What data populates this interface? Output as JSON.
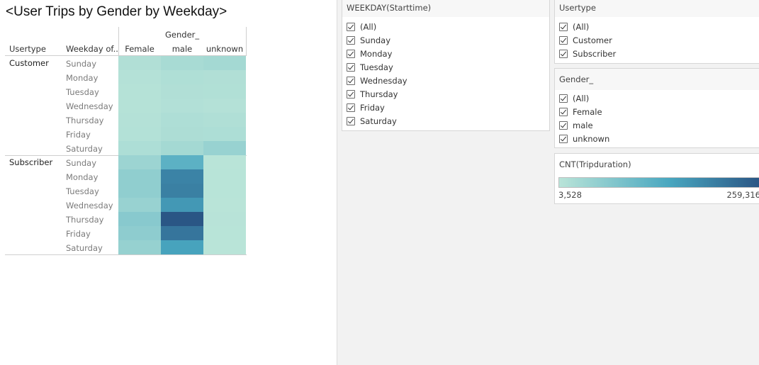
{
  "chart_data": {
    "type": "heatmap",
    "title": "<User Trips by Gender by Weekday>",
    "column_group_header": "Gender_",
    "row_headers": [
      "Usertype",
      "Weekday of.."
    ],
    "columns": [
      "Female",
      "male",
      "unknown"
    ],
    "measure": "CNT(Tripduration)",
    "color_range": [
      3528,
      259316
    ],
    "colors": {
      "low": "#b9e4d8",
      "mid": "#49a7c0",
      "high": "#2a5685"
    },
    "groups": [
      {
        "name": "Customer",
        "rows": [
          {
            "day": "Sunday",
            "values": [
              14000,
              25000,
              30000
            ]
          },
          {
            "day": "Monday",
            "values": [
              10000,
              16000,
              14000
            ]
          },
          {
            "day": "Tuesday",
            "values": [
              9000,
              14000,
              13000
            ]
          },
          {
            "day": "Wednesday",
            "values": [
              8000,
              12000,
              10000
            ]
          },
          {
            "day": "Thursday",
            "values": [
              10000,
              17000,
              15000
            ]
          },
          {
            "day": "Friday",
            "values": [
              11000,
              19000,
              18000
            ]
          },
          {
            "day": "Saturday",
            "values": [
              18000,
              30000,
              45000
            ]
          }
        ]
      },
      {
        "name": "Subscriber",
        "rows": [
          {
            "day": "Sunday",
            "values": [
              40000,
              120000,
              4000
            ]
          },
          {
            "day": "Monday",
            "values": [
              55000,
              195000,
              4500
            ]
          },
          {
            "day": "Tuesday",
            "values": [
              55000,
              200000,
              4500
            ]
          },
          {
            "day": "Wednesday",
            "values": [
              45000,
              165000,
              4000
            ]
          },
          {
            "day": "Thursday",
            "values": [
              65000,
              259316,
              5000
            ]
          },
          {
            "day": "Friday",
            "values": [
              58000,
              215000,
              4500
            ]
          },
          {
            "day": "Saturday",
            "values": [
              48000,
              150000,
              3528
            ]
          }
        ]
      }
    ]
  },
  "filters": {
    "weekday": {
      "title": "WEEKDAY(Starttime)",
      "options": [
        "(All)",
        "Sunday",
        "Monday",
        "Tuesday",
        "Wednesday",
        "Thursday",
        "Friday",
        "Saturday"
      ],
      "checked": [
        true,
        true,
        true,
        true,
        true,
        true,
        true,
        true
      ]
    },
    "usertype": {
      "title": "Usertype",
      "options": [
        "(All)",
        "Customer",
        "Subscriber"
      ],
      "checked": [
        true,
        true,
        true
      ]
    },
    "gender": {
      "title": "Gender_",
      "options": [
        "(All)",
        "Female",
        "male",
        "unknown"
      ],
      "checked": [
        true,
        true,
        true,
        true
      ]
    }
  },
  "legend": {
    "title": "CNT(Tripduration)",
    "min_label": "3,528",
    "max_label": "259,316"
  }
}
